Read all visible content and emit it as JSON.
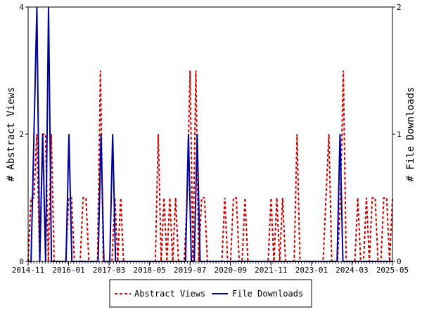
{
  "chart_data": {
    "type": "line",
    "title": "",
    "xlabel": "",
    "ylabel_left": "# Abstract Views",
    "ylabel_right": "# File Downloads",
    "ylim_left": [
      0,
      4
    ],
    "ylim_right": [
      0,
      2
    ],
    "yticks_left": [
      "0",
      "2",
      "4"
    ],
    "yticks_right": [
      "0",
      "1",
      "2"
    ],
    "x_tick_labels": [
      "2014-11",
      "2016-01",
      "2017-03",
      "2018-05",
      "2019-07",
      "2020-09",
      "2021-11",
      "2023-01",
      "2024-03",
      "2025-05"
    ],
    "grid": false,
    "legend_position": "bottom",
    "series": [
      {
        "name": "Abstract Views",
        "color": "#cc0000",
        "axis": "left",
        "style": "dashed",
        "values": [
          0,
          1,
          1,
          2,
          0,
          2,
          2,
          0,
          2,
          0,
          0,
          0,
          0,
          0,
          1,
          1,
          0,
          0,
          0,
          1,
          1,
          0,
          0,
          0,
          0,
          3,
          0,
          0,
          0,
          0,
          1,
          0,
          1,
          0,
          0,
          0,
          0,
          0,
          0,
          0,
          0,
          0,
          0,
          0,
          0,
          2,
          0,
          1,
          0,
          1,
          0,
          1,
          0,
          0,
          0,
          1,
          3,
          0,
          3,
          0,
          1,
          1,
          0,
          0,
          0,
          0,
          0,
          0,
          1,
          0,
          0,
          1,
          1,
          0,
          0,
          1,
          0,
          0,
          0,
          0,
          0,
          0,
          0,
          0,
          1,
          0,
          1,
          0,
          1,
          0,
          0,
          0,
          0,
          2,
          0,
          0,
          0,
          0,
          0,
          0,
          0,
          0,
          0,
          1,
          2,
          0,
          0,
          0,
          1,
          3,
          0,
          0,
          0,
          0,
          1,
          0,
          0,
          1,
          0,
          1,
          1,
          0,
          0,
          1,
          1,
          0,
          1
        ]
      },
      {
        "name": "File Downloads",
        "color": "#000099",
        "axis": "right",
        "style": "solid",
        "values": [
          0,
          0,
          1,
          2,
          0,
          1,
          0,
          2,
          0,
          0,
          0,
          0,
          0,
          0,
          1,
          0,
          0,
          0,
          0,
          0,
          0,
          0,
          0,
          0,
          0,
          1,
          0,
          0,
          0,
          1,
          0,
          0,
          0,
          0,
          0,
          0,
          0,
          0,
          0,
          0,
          0,
          0,
          0,
          0,
          0,
          0,
          0,
          0,
          0,
          0,
          0,
          0,
          0,
          0,
          0,
          1,
          0,
          0,
          1,
          0,
          0,
          0,
          0,
          0,
          0,
          0,
          0,
          0,
          0,
          0,
          0,
          0,
          0,
          0,
          0,
          0,
          0,
          0,
          0,
          0,
          0,
          0,
          0,
          0,
          0,
          0,
          0,
          0,
          0,
          0,
          0,
          0,
          0,
          0,
          0,
          0,
          0,
          0,
          0,
          0,
          0,
          0,
          0,
          0,
          0,
          0,
          0,
          1,
          0,
          0,
          0,
          0,
          0,
          0,
          0,
          0,
          0,
          0,
          0,
          0,
          0,
          0,
          0,
          0,
          0,
          0
        ]
      }
    ]
  }
}
